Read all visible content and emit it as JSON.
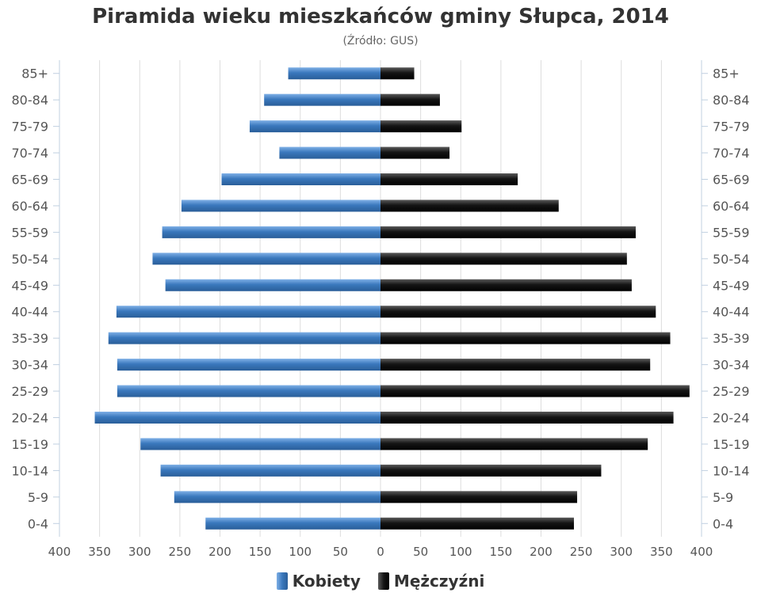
{
  "chart_data": {
    "type": "bar",
    "orientation": "horizontal-population-pyramid",
    "title": "Piramida wieku mieszkańców gminy Słupca, 2014",
    "subtitle": "(Źródło: GUS)",
    "categories": [
      "85+",
      "80-84",
      "75-79",
      "70-74",
      "65-69",
      "60-64",
      "55-59",
      "50-54",
      "45-49",
      "40-44",
      "35-39",
      "30-34",
      "25-29",
      "20-24",
      "15-19",
      "10-14",
      "5-9",
      "0-4"
    ],
    "x_tick_labels": [
      "400",
      "350",
      "300",
      "250",
      "200",
      "150",
      "100",
      "50",
      "0",
      "50",
      "100",
      "150",
      "200",
      "250",
      "300",
      "350",
      "400"
    ],
    "xlim": [
      -400,
      400
    ],
    "grid": true,
    "legend_position": "bottom-center",
    "series": [
      {
        "name": "Kobiety",
        "color": "#4a86c6",
        "values": [
          115,
          145,
          163,
          126,
          198,
          248,
          272,
          284,
          268,
          329,
          339,
          328,
          328,
          356,
          299,
          274,
          257,
          218
        ]
      },
      {
        "name": "Mężczyźni",
        "color": "#1a1a1a",
        "values": [
          42,
          74,
          101,
          86,
          171,
          222,
          318,
          307,
          313,
          343,
          361,
          336,
          385,
          365,
          333,
          275,
          245,
          241
        ]
      }
    ]
  }
}
